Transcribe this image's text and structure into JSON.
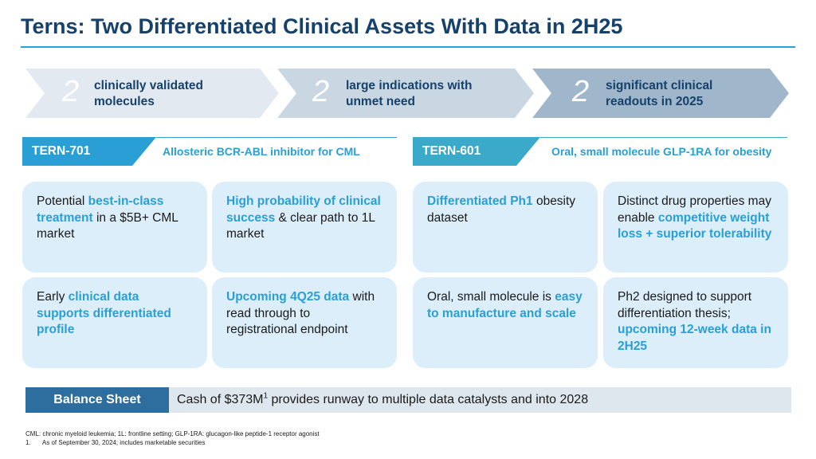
{
  "title": "Terns: Two Differentiated Clinical Assets With Data in 2H25",
  "chevrons": [
    {
      "number": "2",
      "line1": "clinically validated",
      "line2": "molecules",
      "color": "#e3e9f0"
    },
    {
      "number": "2",
      "line1": "large indications with",
      "line2": "unmet need",
      "color": "#c9d7e3"
    },
    {
      "number": "2",
      "line1": "significant clinical",
      "line2": "readouts in 2025",
      "color": "#9fb6cb"
    }
  ],
  "assets": [
    {
      "name": "TERN-701",
      "description": "Allosteric BCR-ABL inhibitor for CML",
      "tag_color": "#2a9fd6",
      "cards": [
        [
          {
            "t": "Potential "
          },
          {
            "t": "best-in-class treatment",
            "hl": true
          },
          {
            "t": " in a $5B+ CML market"
          }
        ],
        [
          {
            "t": "High probability of clinical success",
            "hl": true
          },
          {
            "t": " & clear path to 1L market"
          }
        ],
        [
          {
            "t": "Early "
          },
          {
            "t": "clinical data supports differentiated profile",
            "hl": true
          }
        ],
        [
          {
            "t": "Upcoming 4Q25 data",
            "hl": true
          },
          {
            "t": " with read through to registrational endpoint"
          }
        ]
      ]
    },
    {
      "name": "TERN-601",
      "description": "Oral, small molecule GLP-1RA for obesity",
      "tag_color": "#3ba9c9",
      "cards": [
        [
          {
            "t": "Differentiated Ph1",
            "hl": true
          },
          {
            "t": " obesity dataset"
          }
        ],
        [
          {
            "t": "Distinct drug properties may enable "
          },
          {
            "t": "competitive weight loss + superior tolerability",
            "hl": true
          }
        ],
        [
          {
            "t": "Oral, small molecule is "
          },
          {
            "t": "easy to manufacture and scale",
            "hl": true
          }
        ],
        [
          {
            "t": "Ph2 designed to support differentiation thesis; "
          },
          {
            "t": "upcoming 12-week data in 2H25",
            "hl": true
          }
        ]
      ]
    }
  ],
  "balance": {
    "label": "Balance Sheet",
    "text_before": "Cash of $373M",
    "superscript": "1",
    "text_after": " provides runway to multiple data catalysts and into 2028"
  },
  "footnotes": {
    "abbrev": "CML: chronic myeloid leukemia; 1L: frontline setting; GLP-1RA: glucagon-like peptide-1 receptor agonist",
    "note_number": "1.",
    "note_text": "As of September 30, 2024; includes marketable securities"
  }
}
